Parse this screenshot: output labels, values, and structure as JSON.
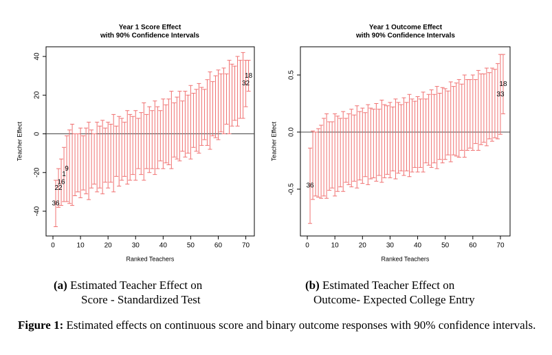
{
  "chart_data": [
    {
      "type": "errorbar",
      "title": "Year 1 Score Effect",
      "subtitle": "with 90% Confidence Intervals",
      "xlabel": "Ranked Teachers",
      "ylabel": "Teacher Effect",
      "color": "#f07070",
      "hline": 0,
      "xlim": [
        -2.5,
        73.1
      ],
      "ylim": [
        -52.8,
        45
      ],
      "xticks": [
        0,
        10,
        20,
        30,
        40,
        50,
        60,
        70
      ],
      "yticks": [
        -40,
        -20,
        0,
        20,
        40
      ],
      "x": [
        1,
        2,
        3,
        4,
        5,
        6,
        7,
        8,
        9,
        10,
        11,
        12,
        13,
        14,
        15,
        16,
        17,
        18,
        19,
        20,
        21,
        22,
        23,
        24,
        25,
        26,
        27,
        28,
        29,
        30,
        31,
        32,
        33,
        34,
        35,
        36,
        37,
        38,
        39,
        40,
        41,
        42,
        43,
        44,
        45,
        46,
        47,
        48,
        49,
        50,
        51,
        52,
        53,
        54,
        55,
        56,
        57,
        58,
        59,
        60,
        61,
        62,
        63,
        64,
        65,
        66,
        67,
        68,
        69,
        70,
        71
      ],
      "values": [
        -36,
        -28,
        -25,
        -21,
        -18,
        -17,
        -16,
        -16,
        -15,
        -15,
        -15,
        -14,
        -14,
        -13,
        -13,
        -12,
        -12,
        -12,
        -11,
        -11,
        -10,
        -10,
        -9,
        -9,
        -8,
        -8,
        -7,
        -7,
        -6,
        -6,
        -5,
        -5,
        -4,
        -4,
        -3,
        -3,
        -2,
        -2,
        -1,
        0,
        0,
        1,
        2,
        2,
        3,
        4,
        4,
        5,
        5,
        6,
        7,
        7,
        8,
        9,
        10,
        11,
        12,
        13,
        14,
        15,
        16,
        17,
        18,
        19,
        20,
        21,
        22,
        23,
        25,
        26,
        30
      ],
      "errors": [
        12,
        10,
        12,
        14,
        17,
        19,
        21,
        16,
        15,
        18,
        14,
        17,
        20,
        15,
        13,
        18,
        16,
        19,
        14,
        17,
        15,
        20,
        13,
        18,
        16,
        14,
        19,
        17,
        15,
        18,
        13,
        16,
        20,
        14,
        17,
        15,
        19,
        16,
        13,
        18,
        15,
        17,
        20,
        14,
        16,
        18,
        13,
        17,
        15,
        19,
        14,
        16,
        18,
        15,
        13,
        17,
        20,
        14,
        16,
        18,
        15,
        17,
        13,
        19,
        16,
        14,
        18,
        15,
        17,
        12,
        8
      ],
      "point_labels": [
        "36",
        "22",
        "16",
        "1",
        "9",
        null,
        null,
        null,
        null,
        null,
        null,
        null,
        null,
        null,
        null,
        null,
        null,
        null,
        null,
        null,
        null,
        null,
        null,
        null,
        null,
        null,
        null,
        null,
        null,
        null,
        null,
        null,
        null,
        null,
        null,
        null,
        null,
        null,
        null,
        null,
        null,
        null,
        null,
        null,
        null,
        null,
        null,
        null,
        null,
        null,
        null,
        null,
        null,
        null,
        null,
        null,
        null,
        null,
        null,
        null,
        null,
        null,
        null,
        null,
        null,
        null,
        null,
        null,
        null,
        "32",
        "18"
      ]
    },
    {
      "type": "errorbar",
      "title": "Year 1 Outcome Effect",
      "subtitle": "with 90% Confidence Intervals",
      "xlabel": "Ranked Teachers",
      "ylabel": "Teacher Effect",
      "color": "#f07070",
      "hline": 0,
      "xlim": [
        -2.5,
        73.5
      ],
      "ylim": [
        -0.91,
        0.747
      ],
      "xticks": [
        0,
        10,
        20,
        30,
        40,
        50,
        60,
        70
      ],
      "yticks": [
        -0.5,
        {
          "value": 0,
          "label": "0.0"
        },
        0.5
      ],
      "x": [
        1,
        2,
        3,
        4,
        5,
        6,
        7,
        8,
        9,
        10,
        11,
        12,
        13,
        14,
        15,
        16,
        17,
        18,
        19,
        20,
        21,
        22,
        23,
        24,
        25,
        26,
        27,
        28,
        29,
        30,
        31,
        32,
        33,
        34,
        35,
        36,
        37,
        38,
        39,
        40,
        41,
        42,
        43,
        44,
        45,
        46,
        47,
        48,
        49,
        50,
        51,
        52,
        53,
        54,
        55,
        56,
        57,
        58,
        59,
        60,
        61,
        62,
        63,
        64,
        65,
        66,
        67,
        68,
        69,
        70,
        71
      ],
      "values": [
        -0.47,
        -0.29,
        -0.28,
        -0.27,
        -0.26,
        -0.22,
        -0.21,
        -0.21,
        -0.2,
        -0.2,
        -0.19,
        -0.18,
        -0.17,
        -0.16,
        -0.15,
        -0.14,
        -0.14,
        -0.13,
        -0.12,
        -0.12,
        -0.11,
        -0.11,
        -0.1,
        -0.1,
        -0.09,
        -0.09,
        -0.08,
        -0.08,
        -0.07,
        -0.07,
        -0.06,
        -0.06,
        -0.05,
        -0.05,
        -0.04,
        -0.04,
        -0.03,
        -0.03,
        -0.02,
        -0.02,
        -0.01,
        0,
        0.01,
        0.02,
        0.03,
        0.03,
        0.04,
        0.05,
        0.06,
        0.07,
        0.08,
        0.09,
        0.1,
        0.11,
        0.12,
        0.13,
        0.14,
        0.15,
        0.16,
        0.17,
        0.18,
        0.19,
        0.2,
        0.21,
        0.22,
        0.23,
        0.24,
        0.25,
        0.27,
        0.33,
        0.42
      ],
      "errors": [
        0.33,
        0.3,
        0.28,
        0.3,
        0.32,
        0.34,
        0.37,
        0.3,
        0.29,
        0.36,
        0.33,
        0.3,
        0.35,
        0.28,
        0.31,
        0.34,
        0.29,
        0.36,
        0.3,
        0.33,
        0.28,
        0.35,
        0.31,
        0.3,
        0.34,
        0.29,
        0.36,
        0.32,
        0.3,
        0.33,
        0.28,
        0.35,
        0.31,
        0.29,
        0.34,
        0.3,
        0.36,
        0.32,
        0.29,
        0.33,
        0.3,
        0.35,
        0.28,
        0.31,
        0.34,
        0.3,
        0.36,
        0.29,
        0.33,
        0.31,
        0.28,
        0.35,
        0.3,
        0.32,
        0.34,
        0.29,
        0.36,
        0.31,
        0.3,
        0.33,
        0.28,
        0.35,
        0.31,
        0.3,
        0.34,
        0.29,
        0.32,
        0.3,
        0.33,
        0.35,
        0.26
      ],
      "point_labels": [
        "36",
        null,
        null,
        null,
        null,
        null,
        null,
        null,
        null,
        null,
        null,
        null,
        null,
        null,
        null,
        null,
        null,
        null,
        null,
        null,
        null,
        null,
        null,
        null,
        null,
        null,
        null,
        null,
        null,
        null,
        null,
        null,
        null,
        null,
        null,
        null,
        null,
        null,
        null,
        null,
        null,
        null,
        null,
        null,
        null,
        null,
        null,
        null,
        null,
        null,
        null,
        null,
        null,
        null,
        null,
        null,
        null,
        null,
        null,
        null,
        null,
        null,
        null,
        null,
        null,
        null,
        null,
        null,
        null,
        "33",
        "18"
      ]
    }
  ],
  "subcaptions": [
    {
      "label": "(a)",
      "lines": [
        "Estimated Teacher Effect on",
        "Score - Standardized Test"
      ]
    },
    {
      "label": "(b)",
      "lines": [
        "Estimated Teacher Effect on",
        "Outcome- Expected College Entry"
      ]
    }
  ],
  "caption": {
    "label": "Figure 1:",
    "text": "Estimated effects on continuous score and binary outcome responses with 90% confidence intervals."
  }
}
